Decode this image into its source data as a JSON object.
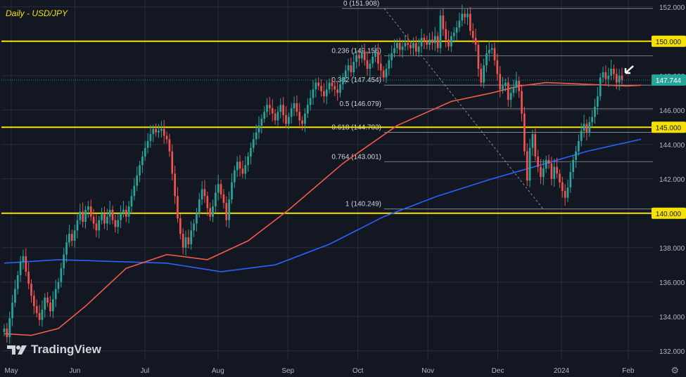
{
  "title": "Daily - USD/JPY",
  "brand": "TradingView",
  "colors": {
    "background": "#131722",
    "grid": "#2a2e39",
    "up": "#26a69a",
    "down": "#ef5350",
    "sma100": "#f05a4a",
    "sma200": "#2962ff",
    "level": "#f5e100",
    "fib": "#9598a1",
    "axis_text": "#b2b5be"
  },
  "chart_data": {
    "type": "candlestick",
    "title": "Daily - USD/JPY",
    "x_ticks": [
      "May",
      "Jun",
      "Jul",
      "Aug",
      "Sep",
      "Oct",
      "Nov",
      "Dec",
      "2024",
      "Feb"
    ],
    "y_ticks": [
      "132.000",
      "134.000",
      "136.000",
      "138.000",
      "140.000",
      "142.000",
      "144.000",
      "146.000",
      "148.000",
      "150.000",
      "152.000"
    ],
    "ylim": [
      131.5,
      152.4
    ],
    "last_price": "147.744",
    "horizontal_levels": [
      {
        "value": 150.0,
        "label": "150.000"
      },
      {
        "value": 145.0,
        "label": "145.000"
      },
      {
        "value": 140.0,
        "label": "140.000"
      }
    ],
    "fibonacci": [
      {
        "label": "0 (151.908)",
        "value": 151.908
      },
      {
        "label": "0.236 (149.156)",
        "value": 149.156
      },
      {
        "label": "0.382 (147.454)",
        "value": 147.454
      },
      {
        "label": "0.5 (146.079)",
        "value": 146.079
      },
      {
        "label": "0.618 (144.703)",
        "value": 144.703
      },
      {
        "label": "0.764 (143.001)",
        "value": 143.001
      },
      {
        "label": "1 (140.249)",
        "value": 140.249
      }
    ],
    "close": [
      133.3,
      132.8,
      133.9,
      134.8,
      135.6,
      136.4,
      137.2,
      137.5,
      136.6,
      135.9,
      135.2,
      134.6,
      134.2,
      133.8,
      134.4,
      135.1,
      134.8,
      134.3,
      135.0,
      135.6,
      136.0,
      136.8,
      137.6,
      138.3,
      138.8,
      138.4,
      139.0,
      139.6,
      140.1,
      139.5,
      140.2,
      140.4,
      139.8,
      139.4,
      139.0,
      139.6,
      140.0,
      139.4,
      139.8,
      140.2,
      139.6,
      139.2,
      139.6,
      140.0,
      140.2,
      139.8,
      140.4,
      141.0,
      141.6,
      142.2,
      142.8,
      143.3,
      143.8,
      144.2,
      144.6,
      144.9,
      144.7,
      144.8,
      144.9,
      144.5,
      144.3,
      143.6,
      142.3,
      141.0,
      139.7,
      138.8,
      138.0,
      138.6,
      138.2,
      139.0,
      139.4,
      140.0,
      140.8,
      141.4,
      141.0,
      140.3,
      139.8,
      140.4,
      141.2,
      141.7,
      141.1,
      140.6,
      139.6,
      140.8,
      141.8,
      142.5,
      143.0,
      142.6,
      142.3,
      142.8,
      143.3,
      143.8,
      144.3,
      144.7,
      145.1,
      145.5,
      145.9,
      146.3,
      146.1,
      145.8,
      145.4,
      145.9,
      146.3,
      145.7,
      145.2,
      145.6,
      146.1,
      146.4,
      145.9,
      145.4,
      145.2,
      145.8,
      146.3,
      146.7,
      147.2,
      147.6,
      147.4,
      147.1,
      146.8,
      147.2,
      147.6,
      147.4,
      147.2,
      147.0,
      147.5,
      147.9,
      148.3,
      148.6,
      148.2,
      148.8,
      149.2,
      149.0,
      149.4,
      148.9,
      148.4,
      148.7,
      149.1,
      149.4,
      148.7,
      148.3,
      147.9,
      148.4,
      148.9,
      149.3,
      149.6,
      149.9,
      149.5,
      149.7,
      149.9,
      149.8,
      149.6,
      149.9,
      149.4,
      149.7,
      150.2,
      150.0,
      149.8,
      150.1,
      149.9,
      150.3,
      149.6,
      151.5,
      150.7,
      150.1,
      149.7,
      150.3,
      150.5,
      150.8,
      151.2,
      151.6,
      151.4,
      151.6,
      150.6,
      150.2,
      149.8,
      148.4,
      147.6,
      148.6,
      149.3,
      149.5,
      149.6,
      148.9,
      148.1,
      147.2,
      147.4,
      147.6,
      146.6,
      147.0,
      147.3,
      147.7,
      147.1,
      145.8,
      143.6,
      141.9,
      143.8,
      144.6,
      143.3,
      142.7,
      142.1,
      142.6,
      143.1,
      142.9,
      142.0,
      142.7,
      142.3,
      141.8,
      141.3,
      140.9,
      141.5,
      142.4,
      143.1,
      143.6,
      144.2,
      144.8,
      145.2,
      144.7,
      145.3,
      145.6,
      146.2,
      146.8,
      147.9,
      148.2,
      147.8,
      148.0,
      148.4,
      148.1,
      147.6,
      148.0,
      147.744
    ],
    "sma100_points": [
      [
        0,
        133.0
      ],
      [
        10,
        132.9
      ],
      [
        20,
        133.3
      ],
      [
        30,
        134.6
      ],
      [
        45,
        136.8
      ],
      [
        60,
        137.6
      ],
      [
        75,
        137.3
      ],
      [
        90,
        138.4
      ],
      [
        105,
        140.2
      ],
      [
        125,
        142.9
      ],
      [
        145,
        145.1
      ],
      [
        165,
        146.5
      ],
      [
        180,
        147.0
      ],
      [
        190,
        147.4
      ],
      [
        200,
        147.6
      ],
      [
        215,
        147.5
      ],
      [
        230,
        147.4
      ],
      [
        235,
        147.45
      ]
    ],
    "sma200_points": [
      [
        0,
        137.1
      ],
      [
        20,
        137.3
      ],
      [
        40,
        137.2
      ],
      [
        60,
        137.1
      ],
      [
        80,
        136.6
      ],
      [
        100,
        137.0
      ],
      [
        120,
        138.2
      ],
      [
        140,
        139.8
      ],
      [
        160,
        141.0
      ],
      [
        180,
        142.0
      ],
      [
        200,
        142.9
      ],
      [
        215,
        143.6
      ],
      [
        235,
        144.3
      ]
    ]
  }
}
